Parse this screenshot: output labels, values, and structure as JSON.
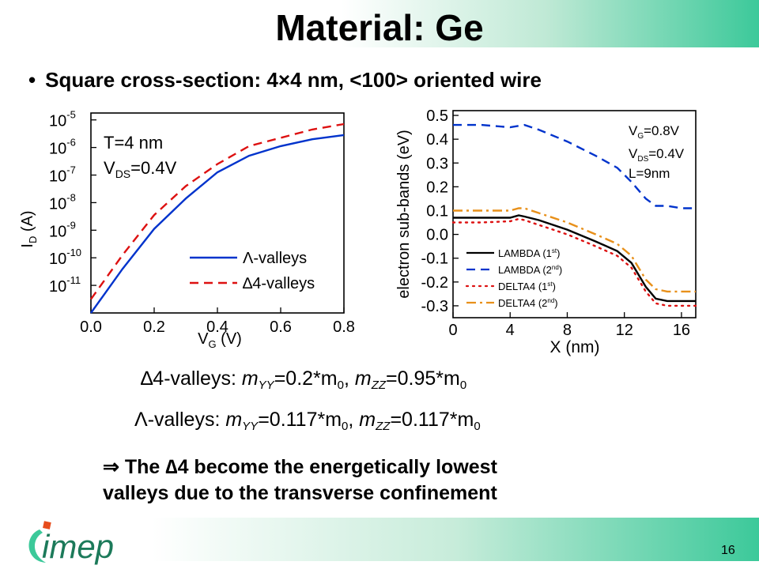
{
  "slide": {
    "title": "Material: Ge",
    "bullet": "Square cross-section: 4×4 nm, <100> oriented wire",
    "bullet_symbol": "•",
    "eq_delta": {
      "prefix": "∆4-valleys: ",
      "m_yy_sym": "m",
      "m_yy_sub": "YY",
      "m_yy_val": "=0.2*m",
      "m0_sub": "0",
      "sep": ", ",
      "m_zz_sym": "m",
      "m_zz_sub": "ZZ",
      "m_zz_val": "=0.95*m"
    },
    "eq_lambda": {
      "prefix": "Λ-valleys: ",
      "m_yy_sym": "m",
      "m_yy_sub": "YY",
      "m_yy_val": "=0.117*m",
      "m0_sub": "0",
      "sep": ", ",
      "m_zz_sym": "m",
      "m_zz_sub": "ZZ",
      "m_zz_val": "=0.117*m"
    },
    "conclusion_line1": "⇒ The ∆4 become the energetically lowest",
    "conclusion_line2": "valleys due to the transverse confinement",
    "logo_text": "imep",
    "page_number": "16"
  },
  "colors": {
    "lambda": "#0033cc",
    "delta4": "#dd1111",
    "lambda2": "#0033cc",
    "delta4_2": "#e8901a",
    "accent": "#3cc99a"
  },
  "chart_data": [
    {
      "type": "line",
      "xlabel_main": "V",
      "xlabel_sub": "G",
      "xlabel_unit": " (V)",
      "ylabel_main": "I",
      "ylabel_sub": "D",
      "ylabel_unit": " (A)",
      "xlim": [
        0,
        0.8
      ],
      "ylim_log10": [
        -12.0,
        -4.75
      ],
      "xticks": [
        "0.0",
        "0.2",
        "0.4",
        "0.6",
        "0.8"
      ],
      "yticks": [
        {
          "base": "10",
          "exp": "-5",
          "v": -5
        },
        {
          "base": "10",
          "exp": "-6",
          "v": -6
        },
        {
          "base": "10",
          "exp": "-7",
          "v": -7
        },
        {
          "base": "10",
          "exp": "-8",
          "v": -8
        },
        {
          "base": "10",
          "exp": "-9",
          "v": -9
        },
        {
          "base": "10",
          "exp": "-10",
          "v": -10
        },
        {
          "base": "10",
          "exp": "-11",
          "v": -11
        }
      ],
      "annotation_T": "T=4 nm",
      "annotation_V_main": "V",
      "annotation_V_sub": "DS",
      "annotation_V_val": "=0.4V",
      "legend": [
        {
          "label": "Λ-valleys",
          "style": "solid",
          "color": "#0033cc"
        },
        {
          "label": "∆4-valleys",
          "style": "dashed",
          "color": "#dd1111"
        }
      ],
      "series": [
        {
          "name": "Λ-valleys",
          "style": "solid",
          "color": "#0033cc",
          "x": [
            0.0,
            0.1,
            0.2,
            0.3,
            0.4,
            0.5,
            0.6,
            0.7,
            0.8
          ],
          "y_log10": [
            -12.0,
            -10.4,
            -8.95,
            -7.85,
            -6.9,
            -6.3,
            -5.95,
            -5.7,
            -5.55
          ]
        },
        {
          "name": "∆4-valleys",
          "style": "dashed",
          "color": "#dd1111",
          "x": [
            0.0,
            0.1,
            0.2,
            0.3,
            0.4,
            0.5,
            0.6,
            0.7,
            0.8
          ],
          "y_log10": [
            -11.5,
            -9.9,
            -8.45,
            -7.4,
            -6.6,
            -5.95,
            -5.65,
            -5.35,
            -5.15
          ]
        }
      ]
    },
    {
      "type": "line",
      "xlabel": "X (nm)",
      "ylabel": "electron sub-bands (eV)",
      "xlim": [
        0,
        17
      ],
      "ylim": [
        -0.35,
        0.52
      ],
      "xticks": [
        "0",
        "4",
        "8",
        "12",
        "16"
      ],
      "yticks": [
        "0.5",
        "0.4",
        "0.3",
        "0.2",
        "0.1",
        "0.0",
        "-0.1",
        "-0.2",
        "-0.3"
      ],
      "annotation_VG_main": "V",
      "annotation_VG_sub": "G",
      "annotation_VG_val": "=0.8V",
      "annotation_VDS_main": "V",
      "annotation_VDS_sub": "DS",
      "annotation_VDS_val": "=0.4V",
      "annotation_L": "L=9nm",
      "legend": [
        {
          "main": "LAMBDA (1",
          "sup": "st",
          "tail": ")",
          "style": "solid",
          "color": "#000000"
        },
        {
          "main": "LAMBDA (2",
          "sup": "nd",
          "tail": ")",
          "style": "dashed",
          "color": "#0033cc"
        },
        {
          "main": "DELTA4 (1",
          "sup": "st",
          "tail": ")",
          "style": "dotted",
          "color": "#dd1111"
        },
        {
          "main": "DELTA4 (2",
          "sup": "nd",
          "tail": ")",
          "style": "dashdot",
          "color": "#e8901a"
        }
      ],
      "series": [
        {
          "name": "LAMBDA (1st)",
          "style": "solid",
          "color": "#000000",
          "x": [
            0,
            2,
            4,
            4.6,
            5,
            6,
            8,
            10,
            11.5,
            12.5,
            13.5,
            14.2,
            15,
            16,
            17
          ],
          "y": [
            0.07,
            0.07,
            0.07,
            0.08,
            0.075,
            0.06,
            0.02,
            -0.03,
            -0.07,
            -0.12,
            -0.22,
            -0.27,
            -0.28,
            -0.28,
            -0.28
          ]
        },
        {
          "name": "LAMBDA (2nd)",
          "style": "dashed",
          "color": "#0033cc",
          "x": [
            0,
            2,
            4,
            5,
            6,
            8,
            10,
            11.5,
            12.5,
            13.5,
            14.2,
            15,
            16,
            17
          ],
          "y": [
            0.46,
            0.46,
            0.45,
            0.46,
            0.44,
            0.39,
            0.33,
            0.28,
            0.22,
            0.15,
            0.12,
            0.12,
            0.11,
            0.11
          ]
        },
        {
          "name": "DELTA4 (1st)",
          "style": "dotted",
          "color": "#dd1111",
          "x": [
            0,
            2,
            4,
            4.6,
            5,
            6,
            8,
            10,
            11.5,
            12.5,
            13.5,
            14.2,
            15,
            16,
            17
          ],
          "y": [
            0.05,
            0.05,
            0.055,
            0.065,
            0.06,
            0.04,
            0.0,
            -0.05,
            -0.09,
            -0.14,
            -0.24,
            -0.29,
            -0.3,
            -0.3,
            -0.3
          ]
        },
        {
          "name": "DELTA4 (2nd)",
          "style": "dashdot",
          "color": "#e8901a",
          "x": [
            0,
            2,
            4,
            4.6,
            5,
            6,
            8,
            10,
            11.5,
            12.5,
            13.5,
            14.2,
            15,
            16,
            17
          ],
          "y": [
            0.1,
            0.1,
            0.1,
            0.11,
            0.11,
            0.09,
            0.05,
            0.0,
            -0.04,
            -0.09,
            -0.19,
            -0.23,
            -0.24,
            -0.24,
            -0.24
          ]
        }
      ]
    }
  ]
}
